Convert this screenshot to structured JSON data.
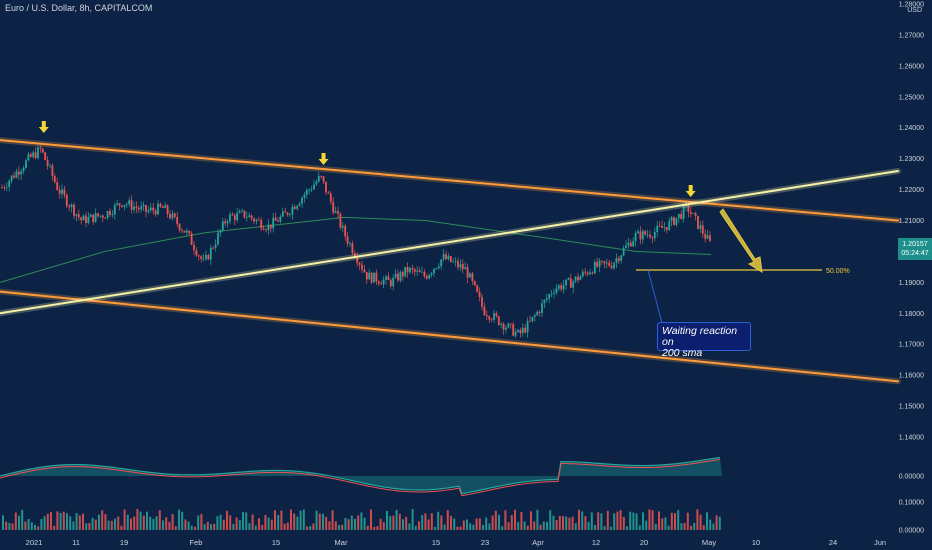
{
  "header": {
    "title": "Euro / U.S. Dollar, 8h, CAPITALCOM",
    "currency": "USD"
  },
  "price_badge": {
    "price": "1.20157",
    "countdown": "05:24:47"
  },
  "annotation": {
    "line1": "Waiting reaction on",
    "line2": "200 sma"
  },
  "fib_label": "50.00%",
  "colors": {
    "background": "#0c2345",
    "bull": "#26a69a",
    "bear": "#ef5350",
    "trendline": "#ff9c3a",
    "support_line": "#f5f0a8",
    "sma": "#2e8b57",
    "arrow": "#f5d533"
  },
  "chart_data": {
    "type": "candlestick",
    "timeframe": "8h",
    "y_axis": {
      "min": 1.13,
      "max": 1.28,
      "ticks": [
        "1.28000",
        "1.27000",
        "1.26000",
        "1.25000",
        "1.24000",
        "1.23000",
        "1.22000",
        "1.21000",
        "1.20000",
        "1.19000",
        "1.18000",
        "1.17000",
        "1.16000",
        "1.15000",
        "1.14000"
      ]
    },
    "x_axis": {
      "ticks": [
        "2021",
        "11",
        "19",
        "Feb",
        "15",
        "Mar",
        "15",
        "23",
        "Apr",
        "12",
        "20",
        "May",
        "10",
        "24",
        "Jun"
      ]
    },
    "price_path": [
      [
        "2021-01-01",
        1.22
      ],
      [
        "2021-01-06",
        1.23
      ],
      [
        "2021-01-08",
        1.233
      ],
      [
        "2021-01-11",
        1.22
      ],
      [
        "2021-01-15",
        1.21
      ],
      [
        "2021-01-19",
        1.212
      ],
      [
        "2021-01-22",
        1.216
      ],
      [
        "2021-01-26",
        1.213
      ],
      [
        "2021-01-29",
        1.214
      ],
      [
        "2021-02-02",
        1.206
      ],
      [
        "2021-02-05",
        1.196
      ],
      [
        "2021-02-09",
        1.211
      ],
      [
        "2021-02-12",
        1.212
      ],
      [
        "2021-02-16",
        1.208
      ],
      [
        "2021-02-19",
        1.212
      ],
      [
        "2021-02-25",
        1.224
      ],
      [
        "2021-03-01",
        1.206
      ],
      [
        "2021-03-05",
        1.192
      ],
      [
        "2021-03-09",
        1.19
      ],
      [
        "2021-03-12",
        1.194
      ],
      [
        "2021-03-15",
        1.192
      ],
      [
        "2021-03-18",
        1.198
      ],
      [
        "2021-03-22",
        1.194
      ],
      [
        "2021-03-25",
        1.181
      ],
      [
        "2021-03-31",
        1.173
      ],
      [
        "2021-04-02",
        1.177
      ],
      [
        "2021-04-06",
        1.188
      ],
      [
        "2021-04-09",
        1.19
      ],
      [
        "2021-04-13",
        1.195
      ],
      [
        "2021-04-16",
        1.196
      ],
      [
        "2021-04-20",
        1.205
      ],
      [
        "2021-04-23",
        1.206
      ],
      [
        "2021-04-26",
        1.209
      ],
      [
        "2021-04-29",
        1.214
      ],
      [
        "2021-05-03",
        1.202
      ]
    ],
    "sma_200": [
      [
        "2021-01-01",
        1.19
      ],
      [
        "2021-01-19",
        1.2
      ],
      [
        "2021-02-05",
        1.206
      ],
      [
        "2021-03-01",
        1.211
      ],
      [
        "2021-03-15",
        1.21
      ],
      [
        "2021-04-06",
        1.204
      ],
      [
        "2021-04-20",
        1.2
      ],
      [
        "2021-05-03",
        1.199
      ]
    ],
    "drawings": {
      "upper_channel": [
        [
          "2021-01-01",
          1.236
        ],
        [
          "2021-06-01",
          1.21
        ]
      ],
      "lower_channel": [
        [
          "2021-01-01",
          1.187
        ],
        [
          "2021-06-01",
          1.158
        ]
      ],
      "rising_trendline": [
        [
          "2021-01-01",
          1.18
        ],
        [
          "2021-06-01",
          1.226
        ]
      ],
      "fib_level": {
        "value": 1.194,
        "label": "50.00%"
      },
      "arrows_down_at": [
        "2021-01-08",
        "2021-02-25",
        "2021-04-29"
      ]
    },
    "oscillator": {
      "ticks": [
        "0.00000",
        "0.10000"
      ]
    },
    "volume": {
      "ticks": [
        "0.00000"
      ]
    }
  }
}
